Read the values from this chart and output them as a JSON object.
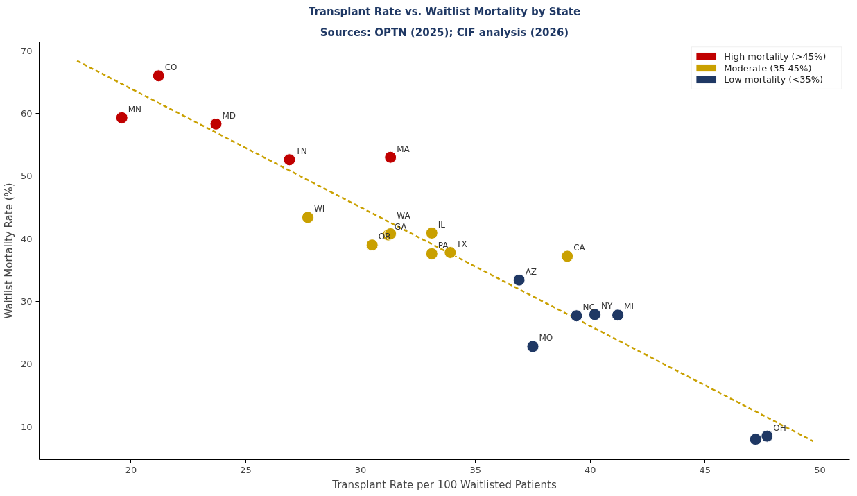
{
  "chart_data": {
    "type": "scatter",
    "title": "Transplant Rate vs. Waitlist Mortality by State",
    "subtitle": "Sources: OPTN (2025); CIF analysis (2026)",
    "xlabel": "Transplant Rate per 100 Waitlisted Patients",
    "ylabel": "Waitlist Mortality Rate (%)",
    "xlim": [
      16.0,
      51.3
    ],
    "ylim": [
      4.75,
      71.4
    ],
    "xticks": [
      20,
      25,
      30,
      35,
      40,
      45,
      50
    ],
    "yticks": [
      10,
      20,
      30,
      40,
      50,
      60,
      70
    ],
    "grid": false,
    "legend": "top right",
    "series": [
      {
        "type": "line",
        "color": "#c9a000",
        "line_style": "dashed",
        "x": [
          17.65,
          49.7
        ],
        "values": [
          68.4,
          7.7
        ]
      },
      {
        "name": "High mortality (>45%)",
        "color": "#c00000",
        "marker": "circle",
        "x": [
          21.2,
          19.6,
          23.7,
          26.9,
          31.3
        ],
        "values": [
          66.0,
          59.3,
          58.3,
          52.6,
          53.0
        ],
        "value_labels": [
          "CO",
          "MN",
          "MD",
          "TN",
          "MA"
        ]
      },
      {
        "name": "Moderate (35-45%)",
        "color": "#c9a000",
        "marker": "circle",
        "x": [
          27.7,
          30.5,
          31.2,
          31.3,
          33.1,
          33.1,
          33.9,
          39.0
        ],
        "values": [
          43.4,
          39.0,
          40.6,
          40.8,
          40.9,
          37.6,
          37.8,
          37.2
        ],
        "value_labels": [
          "WI",
          "OR",
          "GA",
          "WA",
          "IL",
          "PA",
          "TX",
          "CA"
        ]
      },
      {
        "name": "Low mortality (<35%)",
        "color": "#1f3864",
        "marker": "circle",
        "x": [
          36.9,
          37.5,
          39.4,
          40.2,
          41.2,
          47.2,
          47.7
        ],
        "values": [
          33.4,
          22.8,
          27.7,
          27.9,
          27.8,
          8.0,
          8.5
        ],
        "value_labels": [
          "AZ",
          "MO",
          "NC",
          "NY",
          "MI",
          null,
          "OH"
        ]
      }
    ]
  }
}
